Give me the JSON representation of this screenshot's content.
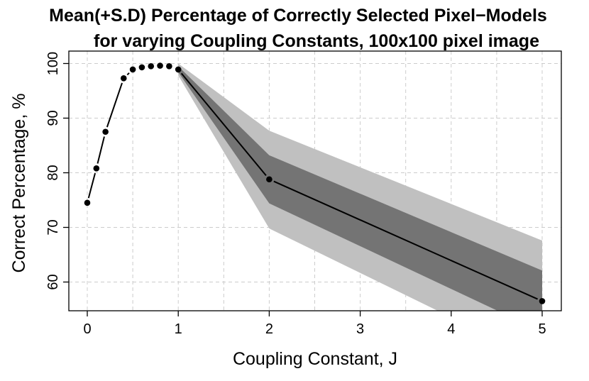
{
  "chart_data": {
    "type": "line",
    "title_line1": "Mean(+S.D) Percentage of Correctly Selected Pixel−Models",
    "title_line2": "for varying Coupling Constants, 100x100 pixel image",
    "xlabel": "Coupling Constant, J",
    "ylabel": "Correct Percentage, %",
    "xlim": [
      0,
      5
    ],
    "ylim": [
      55,
      100
    ],
    "grid": true,
    "x_ticks": [
      0,
      1,
      2,
      3,
      4,
      5
    ],
    "x_tick_labels": [
      "0",
      "1",
      "2",
      "3",
      "4",
      "5"
    ],
    "y_ticks": [
      60,
      70,
      80,
      90,
      100
    ],
    "y_tick_labels": [
      "60",
      "70",
      "80",
      "90",
      "100"
    ],
    "x_grid": [
      0,
      0.5,
      1,
      1.5,
      2,
      2.5,
      3,
      3.5,
      4,
      4.5,
      5
    ],
    "series": [
      {
        "name": "mean",
        "x": [
          0,
          0.1,
          0.2,
          0.4,
          0.5,
          0.6,
          0.7,
          0.8,
          0.9,
          1,
          2,
          5
        ],
        "y": [
          74.5,
          80.8,
          87.5,
          97.3,
          98.9,
          99.3,
          99.5,
          99.6,
          99.5,
          98.9,
          78.8,
          56.5
        ]
      }
    ],
    "bands": [
      {
        "name": "mean ± 2 S.D",
        "color": "#c0c0c0",
        "x": [
          1,
          2,
          5
        ],
        "upper": [
          100,
          87.7,
          67.6
        ],
        "lower": [
          97.8,
          69.8,
          45.4
        ]
      },
      {
        "name": "mean ± 1 S.D",
        "color": "#747474",
        "x": [
          1,
          2,
          5
        ],
        "upper": [
          99.5,
          83.2,
          62.1
        ],
        "lower": [
          98.4,
          74.4,
          50.9
        ]
      }
    ]
  }
}
